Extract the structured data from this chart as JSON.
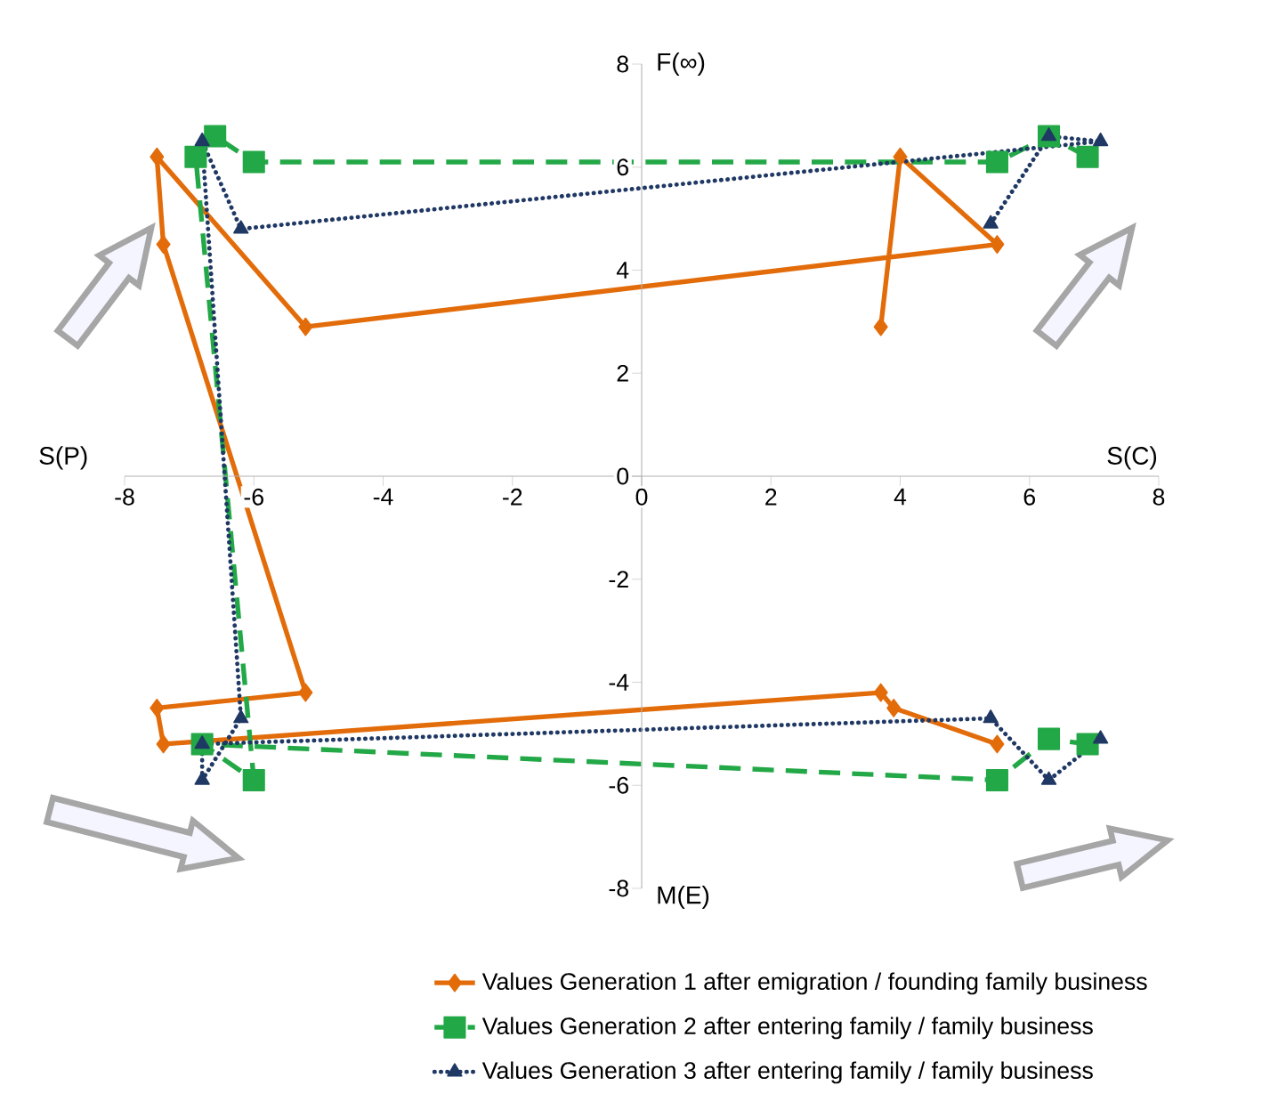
{
  "chart_data": {
    "type": "line",
    "xlim": [
      -8,
      8
    ],
    "ylim": [
      -8,
      8
    ],
    "xticks": [
      -8,
      -6,
      -4,
      -2,
      0,
      2,
      4,
      6,
      8
    ],
    "yticks": [
      -8,
      -6,
      -4,
      -2,
      0,
      2,
      4,
      6,
      8
    ],
    "grid": false,
    "legend": "bottom",
    "annotations": [
      "S(P)",
      "S(C)",
      "F(∞)",
      "M(E)"
    ],
    "series": [
      {
        "name": "Values Generation 1 after emigration / founding family business",
        "color": "#e36c0a",
        "marker": "diamond",
        "line_style": "solid",
        "x": [
          3.7,
          4.0,
          5.5,
          -5.2,
          -7.5,
          -7.4,
          -5.2,
          -7.5,
          -7.4,
          3.7,
          3.9,
          5.5
        ],
        "values": [
          2.9,
          6.2,
          4.5,
          2.9,
          6.2,
          4.5,
          -4.2,
          -4.5,
          -5.2,
          -4.2,
          -4.5,
          -5.2
        ]
      },
      {
        "name": "Values Generation 2 after entering family / family business",
        "color": "#22a846",
        "marker": "square",
        "line_style": "dashed",
        "x": [
          6.9,
          6.3,
          5.5,
          -6.0,
          -6.6,
          -6.9,
          -6.0,
          -6.8,
          5.5,
          6.3,
          6.9
        ],
        "values": [
          6.2,
          6.6,
          6.1,
          6.1,
          6.6,
          6.2,
          -5.9,
          -5.2,
          -5.9,
          -5.1,
          -5.2
        ]
      },
      {
        "name": "Values Generation 3 after entering family / family business",
        "color": "#1f3864",
        "marker": "triangle",
        "line_style": "dotted",
        "x": [
          5.4,
          6.3,
          7.1,
          -6.2,
          -6.8,
          -6.2,
          -6.8,
          -6.8,
          5.4,
          6.3,
          7.1
        ],
        "values": [
          4.9,
          6.6,
          6.5,
          4.8,
          6.5,
          -4.7,
          -5.9,
          -5.2,
          -4.7,
          -5.9,
          -5.1
        ]
      }
    ]
  }
}
